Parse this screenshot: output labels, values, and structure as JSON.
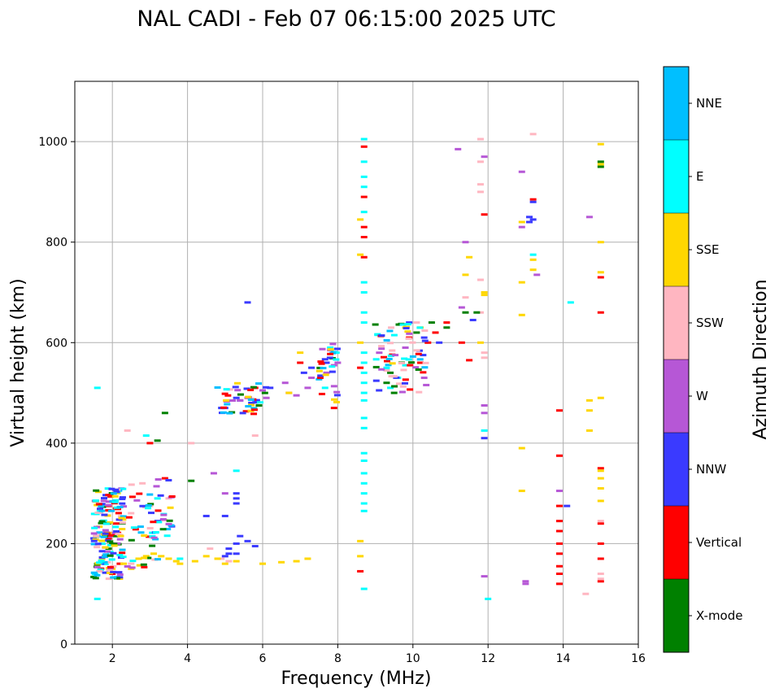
{
  "chart_data": {
    "type": "scatter",
    "title": "NAL CADI - Feb 07 06:15:00 2025 UTC",
    "xlabel": "Frequency (MHz)",
    "ylabel": "Virtual height (km)",
    "xlim": [
      1,
      16
    ],
    "ylim": [
      0,
      1120
    ],
    "xticks": [
      2,
      4,
      6,
      8,
      10,
      12,
      14,
      16
    ],
    "yticks": [
      0,
      200,
      400,
      600,
      800,
      1000
    ],
    "grid": true,
    "colorbar": {
      "label": "Azimuth Direction",
      "categories": [
        "X-mode",
        "Vertical",
        "NNW",
        "W",
        "SSW",
        "SSE",
        "E",
        "NNE"
      ],
      "colors": [
        "#008000",
        "#ff0000",
        "#3a3aff",
        "#b657d6",
        "#ffb6c1",
        "#ffd700",
        "#00ffff",
        "#00bfff"
      ]
    },
    "series": [
      {
        "name": "Vertical",
        "points": [
          [
            1.8,
            175
          ],
          [
            1.9,
            210
          ],
          [
            2.0,
            140
          ],
          [
            2.0,
            300
          ],
          [
            2.1,
            240
          ],
          [
            2.1,
            270
          ],
          [
            2.2,
            160
          ],
          [
            1.7,
            150
          ],
          [
            1.9,
            275
          ],
          [
            3.0,
            400
          ],
          [
            3.4,
            330
          ],
          [
            5.8,
            510
          ],
          [
            7.0,
            560
          ],
          [
            7.9,
            470
          ],
          [
            8.6,
            145
          ],
          [
            8.6,
            550
          ],
          [
            8.7,
            770
          ],
          [
            8.7,
            810
          ],
          [
            8.7,
            830
          ],
          [
            8.7,
            890
          ],
          [
            8.7,
            990
          ],
          [
            9.9,
            610
          ],
          [
            10.2,
            560
          ],
          [
            10.4,
            600
          ],
          [
            10.6,
            620
          ],
          [
            10.9,
            640
          ],
          [
            11.3,
            600
          ],
          [
            11.5,
            565
          ],
          [
            11.9,
            855
          ],
          [
            13.2,
            885
          ],
          [
            13.9,
            375
          ],
          [
            13.9,
            465
          ],
          [
            13.9,
            275
          ],
          [
            13.9,
            245
          ],
          [
            13.9,
            225
          ],
          [
            13.9,
            200
          ],
          [
            13.9,
            180
          ],
          [
            13.9,
            155
          ],
          [
            13.9,
            140
          ],
          [
            13.9,
            120
          ],
          [
            15.0,
            240
          ],
          [
            15.0,
            350
          ],
          [
            15.0,
            200
          ],
          [
            15.0,
            170
          ],
          [
            15.0,
            125
          ],
          [
            15.0,
            730
          ],
          [
            15.0,
            660
          ]
        ]
      },
      {
        "name": "NNW",
        "points": [
          [
            5.6,
            680
          ],
          [
            4.5,
            255
          ],
          [
            5.0,
            255
          ],
          [
            5.3,
            280
          ],
          [
            5.3,
            290
          ],
          [
            5.3,
            300
          ],
          [
            5.1,
            190
          ],
          [
            5.0,
            175
          ],
          [
            5.3,
            200
          ],
          [
            5.4,
            215
          ],
          [
            5.6,
            205
          ],
          [
            5.8,
            195
          ],
          [
            5.3,
            180
          ],
          [
            5.1,
            180
          ],
          [
            4.9,
            470
          ],
          [
            5.0,
            470
          ],
          [
            5.3,
            490
          ],
          [
            5.4,
            485
          ],
          [
            5.7,
            480
          ],
          [
            6.2,
            510
          ],
          [
            7.1,
            540
          ],
          [
            7.3,
            550
          ],
          [
            7.7,
            560
          ],
          [
            7.9,
            580
          ],
          [
            9.1,
            505
          ],
          [
            9.9,
            640
          ],
          [
            10.3,
            610
          ],
          [
            10.7,
            600
          ],
          [
            11.6,
            645
          ],
          [
            13.1,
            850
          ],
          [
            13.1,
            840
          ],
          [
            13.2,
            880
          ],
          [
            13.2,
            845
          ],
          [
            14.1,
            275
          ],
          [
            11.9,
            410
          ]
        ]
      },
      {
        "name": "W",
        "points": [
          [
            6.6,
            520
          ],
          [
            6.7,
            500
          ],
          [
            6.9,
            495
          ],
          [
            7.2,
            510
          ],
          [
            7.3,
            530
          ],
          [
            7.7,
            540
          ],
          [
            7.9,
            555
          ],
          [
            8.0,
            560
          ],
          [
            7.8,
            585
          ],
          [
            5.4,
            485
          ],
          [
            5.6,
            490
          ],
          [
            6.0,
            505
          ],
          [
            6.1,
            490
          ],
          [
            4.7,
            340
          ],
          [
            5.0,
            300
          ],
          [
            11.2,
            985
          ],
          [
            11.3,
            670
          ],
          [
            11.4,
            800
          ],
          [
            11.9,
            970
          ],
          [
            11.9,
            475
          ],
          [
            11.9,
            460
          ],
          [
            11.9,
            135
          ],
          [
            12.9,
            940
          ],
          [
            12.9,
            830
          ],
          [
            13.0,
            125
          ],
          [
            13.0,
            120
          ],
          [
            13.3,
            735
          ],
          [
            13.9,
            305
          ],
          [
            14.7,
            850
          ],
          [
            10.3,
            530
          ],
          [
            9.8,
            590
          ]
        ]
      },
      {
        "name": "SSW",
        "points": [
          [
            1.7,
            165
          ],
          [
            2.4,
            425
          ],
          [
            2.5,
            160
          ],
          [
            2.8,
            320
          ],
          [
            3.0,
            275
          ],
          [
            3.5,
            290
          ],
          [
            4.1,
            400
          ],
          [
            4.6,
            190
          ],
          [
            4.9,
            170
          ],
          [
            5.1,
            165
          ],
          [
            5.8,
            415
          ],
          [
            10.1,
            640
          ],
          [
            11.4,
            690
          ],
          [
            11.8,
            1005
          ],
          [
            11.8,
            960
          ],
          [
            11.8,
            915
          ],
          [
            11.8,
            900
          ],
          [
            11.8,
            725
          ],
          [
            11.8,
            660
          ],
          [
            11.9,
            580
          ],
          [
            11.9,
            570
          ],
          [
            15.0,
            140
          ],
          [
            15.0,
            130
          ],
          [
            14.6,
            100
          ],
          [
            15.0,
            245
          ],
          [
            13.2,
            1015
          ]
        ]
      },
      {
        "name": "SSE",
        "points": [
          [
            1.6,
            155
          ],
          [
            2.0,
            150
          ],
          [
            2.3,
            160
          ],
          [
            2.5,
            150
          ],
          [
            2.7,
            170
          ],
          [
            2.9,
            175
          ],
          [
            3.1,
            180
          ],
          [
            3.3,
            175
          ],
          [
            3.5,
            170
          ],
          [
            3.7,
            165
          ],
          [
            3.8,
            160
          ],
          [
            4.2,
            165
          ],
          [
            4.5,
            175
          ],
          [
            4.8,
            170
          ],
          [
            5.0,
            160
          ],
          [
            5.3,
            165
          ],
          [
            6.0,
            160
          ],
          [
            6.5,
            163
          ],
          [
            6.9,
            165
          ],
          [
            7.2,
            170
          ],
          [
            7.0,
            580
          ],
          [
            8.6,
            175
          ],
          [
            8.6,
            205
          ],
          [
            8.6,
            775
          ],
          [
            8.6,
            845
          ],
          [
            8.6,
            600
          ],
          [
            9.8,
            630
          ],
          [
            10.2,
            630
          ],
          [
            11.4,
            735
          ],
          [
            11.5,
            770
          ],
          [
            11.8,
            600
          ],
          [
            11.9,
            695
          ],
          [
            11.9,
            700
          ],
          [
            12.9,
            720
          ],
          [
            12.9,
            655
          ],
          [
            12.9,
            840
          ],
          [
            12.9,
            390
          ],
          [
            12.9,
            305
          ],
          [
            13.2,
            765
          ],
          [
            13.2,
            745
          ],
          [
            14.7,
            485
          ],
          [
            14.7,
            465
          ],
          [
            14.7,
            425
          ],
          [
            15.0,
            490
          ],
          [
            15.0,
            345
          ],
          [
            15.0,
            330
          ],
          [
            15.0,
            310
          ],
          [
            15.0,
            285
          ],
          [
            15.0,
            740
          ],
          [
            15.0,
            800
          ],
          [
            15.0,
            955
          ],
          [
            15.0,
            995
          ],
          [
            6.7,
            500
          ]
        ]
      },
      {
        "name": "E",
        "points": [
          [
            1.6,
            90
          ],
          [
            1.6,
            510
          ],
          [
            2.9,
            415
          ],
          [
            3.2,
            290
          ],
          [
            3.8,
            170
          ],
          [
            5.3,
            345
          ],
          [
            7.8,
            590
          ],
          [
            8.7,
            110
          ],
          [
            8.7,
            265
          ],
          [
            8.7,
            280
          ],
          [
            8.7,
            300
          ],
          [
            8.7,
            320
          ],
          [
            8.7,
            340
          ],
          [
            8.7,
            365
          ],
          [
            8.7,
            380
          ],
          [
            8.7,
            430
          ],
          [
            8.7,
            450
          ],
          [
            8.7,
            485
          ],
          [
            8.7,
            500
          ],
          [
            8.7,
            520
          ],
          [
            8.7,
            540
          ],
          [
            8.7,
            560
          ],
          [
            8.7,
            580
          ],
          [
            8.7,
            640
          ],
          [
            8.7,
            660
          ],
          [
            8.7,
            700
          ],
          [
            8.7,
            720
          ],
          [
            8.7,
            860
          ],
          [
            8.7,
            910
          ],
          [
            8.7,
            930
          ],
          [
            8.7,
            960
          ],
          [
            8.7,
            1005
          ],
          [
            9.3,
            550
          ],
          [
            9.4,
            510
          ],
          [
            9.6,
            530
          ],
          [
            9.8,
            555
          ],
          [
            12.0,
            90
          ],
          [
            11.9,
            425
          ],
          [
            14.2,
            680
          ],
          [
            13.2,
            775
          ]
        ]
      },
      {
        "name": "X-mode",
        "points": [
          [
            1.9,
            190
          ],
          [
            2.0,
            200
          ],
          [
            2.1,
            215
          ],
          [
            3.4,
            460
          ],
          [
            3.2,
            405
          ],
          [
            4.1,
            325
          ],
          [
            9.3,
            520
          ],
          [
            9.4,
            540
          ],
          [
            9.5,
            500
          ],
          [
            9.7,
            560
          ],
          [
            10.1,
            620
          ],
          [
            10.5,
            640
          ],
          [
            10.9,
            630
          ],
          [
            11.4,
            660
          ],
          [
            11.7,
            660
          ],
          [
            15.0,
            960
          ],
          [
            15.0,
            950
          ]
        ]
      }
    ],
    "noise_clusters": [
      {
        "xmin": 1.5,
        "xmax": 2.3,
        "ymin": 130,
        "ymax": 310,
        "count": 170,
        "seed": 11
      },
      {
        "xmin": 2.4,
        "xmax": 3.6,
        "ymin": 150,
        "ymax": 330,
        "count": 60,
        "seed": 23
      },
      {
        "xmin": 4.8,
        "xmax": 6.1,
        "ymin": 450,
        "ymax": 520,
        "count": 40,
        "seed": 37
      },
      {
        "xmin": 7.5,
        "xmax": 8.0,
        "ymin": 480,
        "ymax": 600,
        "count": 30,
        "seed": 41
      },
      {
        "xmin": 9.0,
        "xmax": 10.4,
        "ymin": 500,
        "ymax": 640,
        "count": 70,
        "seed": 53
      }
    ]
  }
}
